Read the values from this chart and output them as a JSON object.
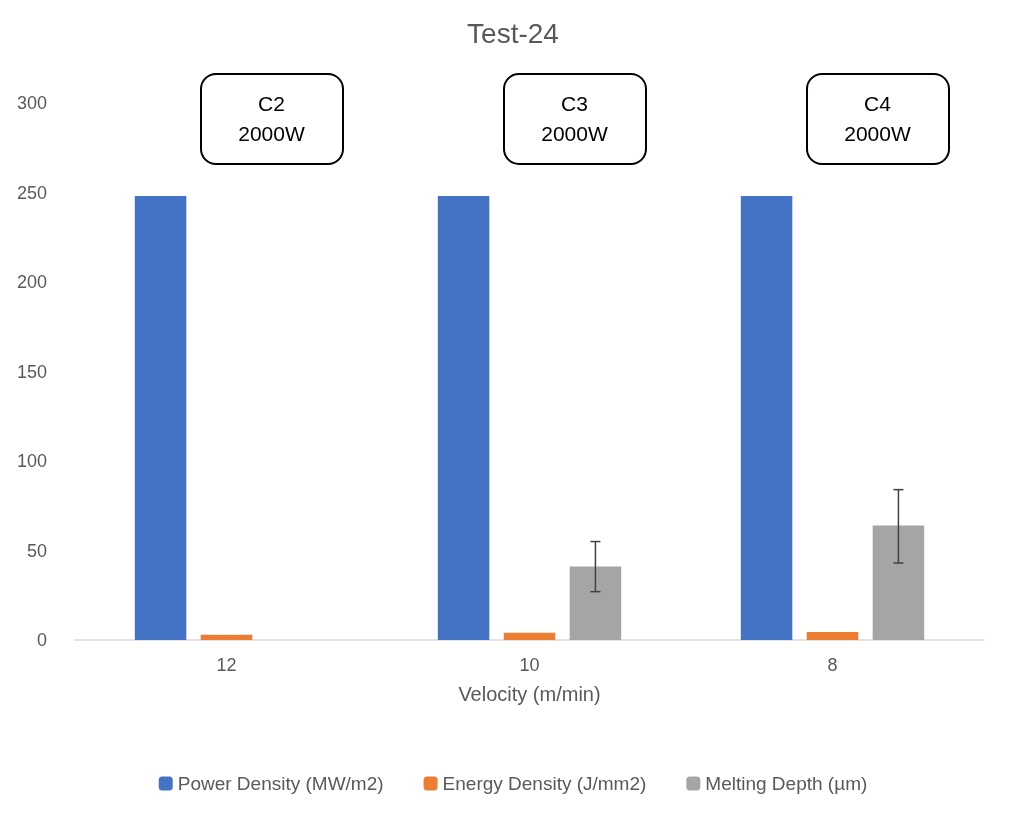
{
  "chart_data": {
    "type": "bar",
    "title": "Test-24",
    "xlabel": "Velocity (m/min)",
    "categories": [
      "12",
      "10",
      "8"
    ],
    "series": [
      {
        "name": "Power Density (MW/m2)",
        "color": "#4472c4",
        "values": [
          248,
          248,
          248
        ]
      },
      {
        "name": "Energy Density (J/mm2)",
        "color": "#ed7d31",
        "values": [
          3,
          4,
          4.5
        ]
      },
      {
        "name": "Melting Depth (µm)",
        "color": "#a5a5a5",
        "values": [
          null,
          41,
          64
        ],
        "errors": [
          null,
          [
            27,
            55
          ],
          [
            43,
            84
          ]
        ]
      }
    ],
    "ylim": [
      0,
      300
    ],
    "yticks": [
      0,
      50,
      100,
      150,
      200,
      250,
      300
    ],
    "grid": false,
    "legend": "bottom",
    "annotations": [
      "C2\n2000W",
      "C3\n2000W",
      "C4\n2000W"
    ]
  }
}
